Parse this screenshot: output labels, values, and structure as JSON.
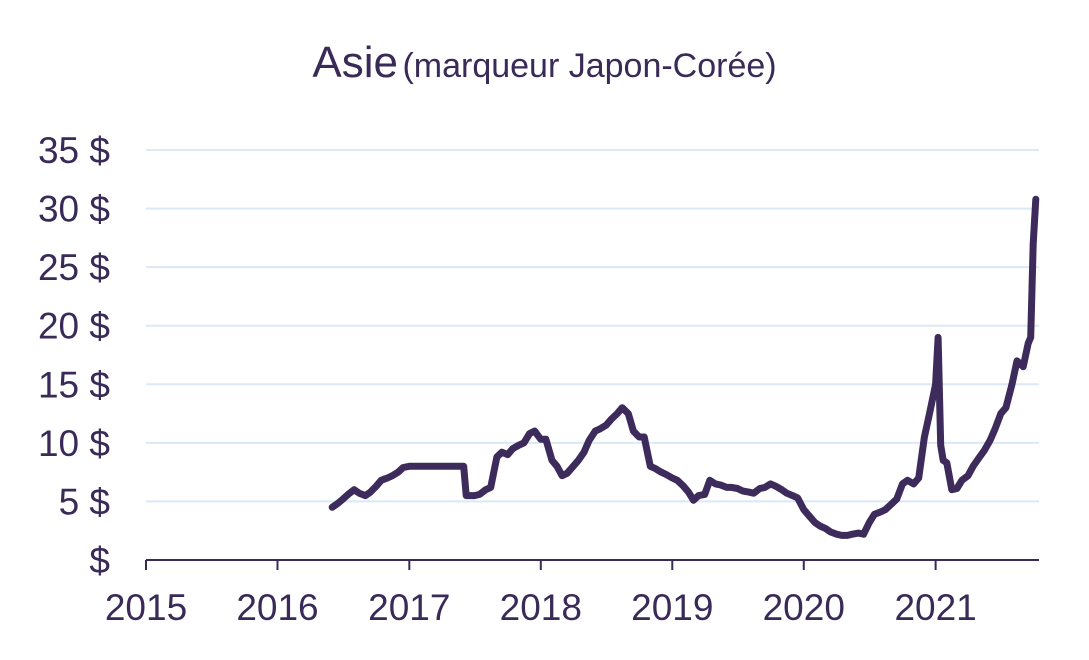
{
  "chart_data": {
    "type": "line",
    "title": "Asie",
    "subtitle": "(marqueur Japon-Corée)",
    "xlabel": "",
    "ylabel": "",
    "x_ticks": [
      "2015",
      "2016",
      "2017",
      "2018",
      "2019",
      "2020",
      "2021"
    ],
    "y_ticks": [
      "$",
      "5 $",
      "10 $",
      "15 $",
      "20 $",
      "25 $",
      "30 $",
      "35 $"
    ],
    "xlim": [
      "2015-01-01",
      "2021-10-15"
    ],
    "ylim": [
      0,
      35
    ],
    "grid": true,
    "legend": "none",
    "colors": {
      "line": "#3d2b5c",
      "grid": "#dbe8f6",
      "axis": "#3a2a58"
    },
    "series": [
      {
        "x": [
          "2016-06-01",
          "2016-06-15",
          "2016-07-01",
          "2016-07-15",
          "2016-08-01",
          "2016-08-15",
          "2016-09-01",
          "2016-09-15",
          "2016-10-01",
          "2016-10-15",
          "2016-11-01",
          "2016-11-15",
          "2016-12-01",
          "2016-12-15",
          "2017-01-01",
          "2017-02-01",
          "2017-03-01",
          "2017-04-01",
          "2017-05-01",
          "2017-06-01",
          "2017-06-08",
          "2017-06-15",
          "2017-07-01",
          "2017-07-15",
          "2017-08-01",
          "2017-08-15",
          "2017-09-01",
          "2017-09-15",
          "2017-10-01",
          "2017-10-15",
          "2017-11-01",
          "2017-11-15",
          "2017-12-01",
          "2017-12-15",
          "2018-01-01",
          "2018-01-15",
          "2018-02-01",
          "2018-02-15",
          "2018-03-01",
          "2018-03-15",
          "2018-04-01",
          "2018-04-15",
          "2018-05-01",
          "2018-05-15",
          "2018-06-01",
          "2018-06-15",
          "2018-07-01",
          "2018-07-15",
          "2018-08-01",
          "2018-08-15",
          "2018-09-01",
          "2018-09-15",
          "2018-10-01",
          "2018-10-15",
          "2018-11-01",
          "2018-11-15",
          "2018-12-01",
          "2018-12-15",
          "2019-01-01",
          "2019-01-15",
          "2019-02-01",
          "2019-02-15",
          "2019-03-01",
          "2019-03-15",
          "2019-04-01",
          "2019-04-15",
          "2019-05-01",
          "2019-05-15",
          "2019-06-01",
          "2019-06-15",
          "2019-07-01",
          "2019-07-15",
          "2019-08-01",
          "2019-08-15",
          "2019-09-01",
          "2019-09-15",
          "2019-10-01",
          "2019-10-15",
          "2019-11-01",
          "2019-11-15",
          "2019-12-01",
          "2019-12-15",
          "2020-01-01",
          "2020-01-15",
          "2020-02-01",
          "2020-02-15",
          "2020-03-01",
          "2020-03-15",
          "2020-04-01",
          "2020-04-15",
          "2020-05-01",
          "2020-05-15",
          "2020-06-01",
          "2020-06-15",
          "2020-07-01",
          "2020-07-15",
          "2020-08-01",
          "2020-08-15",
          "2020-09-01",
          "2020-09-15",
          "2020-10-01",
          "2020-10-15",
          "2020-11-01",
          "2020-11-15",
          "2020-12-01",
          "2020-12-15",
          "2021-01-01",
          "2021-01-08",
          "2021-01-15",
          "2021-01-22",
          "2021-02-01",
          "2021-02-15",
          "2021-03-01",
          "2021-03-15",
          "2021-04-01",
          "2021-04-15",
          "2021-05-01",
          "2021-05-15",
          "2021-06-01",
          "2021-06-15",
          "2021-07-01",
          "2021-07-15",
          "2021-08-01",
          "2021-08-15",
          "2021-09-01",
          "2021-09-15",
          "2021-09-22",
          "2021-09-29",
          "2021-10-06"
        ],
        "values": [
          4.5,
          4.8,
          5.2,
          5.6,
          6.0,
          5.7,
          5.5,
          5.8,
          6.3,
          6.8,
          7.0,
          7.2,
          7.5,
          7.9,
          8.0,
          8.0,
          8.0,
          8.0,
          8.0,
          8.0,
          5.5,
          5.5,
          5.5,
          5.6,
          6.0,
          6.2,
          8.8,
          9.2,
          9.0,
          9.5,
          9.8,
          10.0,
          10.8,
          11.0,
          10.3,
          10.3,
          8.5,
          8.0,
          7.2,
          7.4,
          8.0,
          8.5,
          9.2,
          10.2,
          11.0,
          11.2,
          11.5,
          12.0,
          12.5,
          13.0,
          12.5,
          11.0,
          10.5,
          10.5,
          8.0,
          7.8,
          7.5,
          7.3,
          7.0,
          6.8,
          6.3,
          5.8,
          5.1,
          5.5,
          5.6,
          6.8,
          6.5,
          6.4,
          6.2,
          6.2,
          6.1,
          5.9,
          5.8,
          5.7,
          6.1,
          6.2,
          6.5,
          6.3,
          6.0,
          5.7,
          5.5,
          5.3,
          4.3,
          3.8,
          3.2,
          2.9,
          2.7,
          2.4,
          2.2,
          2.1,
          2.1,
          2.2,
          2.3,
          2.2,
          3.2,
          3.9,
          4.1,
          4.3,
          4.8,
          5.2,
          6.5,
          6.8,
          6.5,
          7.0,
          10.5,
          12.5,
          15.0,
          19.0,
          9.8,
          8.5,
          8.3,
          6.0,
          6.1,
          6.8,
          7.2,
          8.0,
          8.7,
          9.3,
          10.2,
          11.2,
          12.5,
          13.0,
          15.0,
          17.0,
          16.5,
          18.5,
          19.0,
          27.0,
          30.8
        ]
      }
    ]
  }
}
